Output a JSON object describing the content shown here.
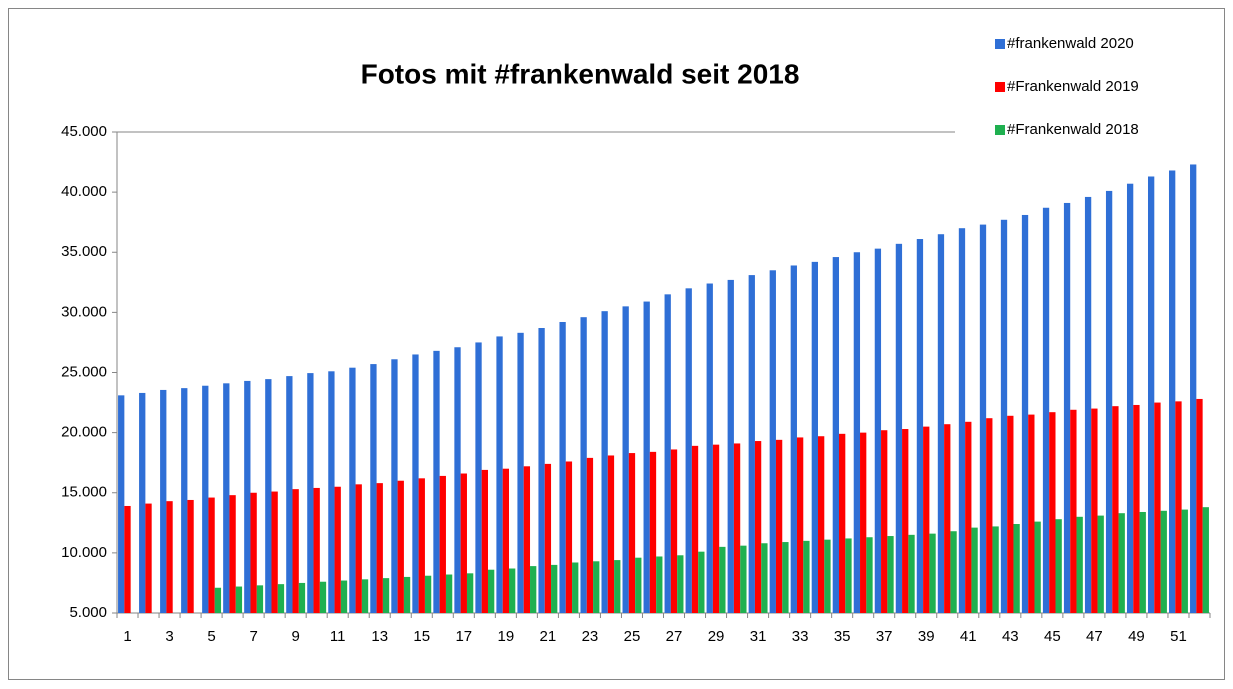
{
  "chart_data": {
    "type": "bar",
    "title": "Fotos mit #frankenwald seit 2018",
    "categories": [
      1,
      null,
      3,
      null,
      5,
      null,
      7,
      null,
      9,
      null,
      11,
      null,
      13,
      null,
      15,
      null,
      17,
      null,
      19,
      null,
      21,
      null,
      23,
      null,
      25,
      null,
      27,
      null,
      29,
      null,
      31,
      null,
      33,
      null,
      35,
      null,
      37,
      null,
      39,
      null,
      41,
      null,
      43,
      null,
      45,
      null,
      47,
      null,
      49,
      null,
      51,
      null
    ],
    "series": [
      {
        "name": "#frankenwald 2020",
        "color": "#2f6fd6",
        "values": [
          23100,
          23300,
          23550,
          23700,
          23900,
          24100,
          24300,
          24450,
          24700,
          24950,
          25100,
          25400,
          25700,
          26100,
          26500,
          26800,
          27100,
          27500,
          28000,
          28300,
          28700,
          29200,
          29600,
          30100,
          30500,
          30900,
          31500,
          32000,
          32400,
          32700,
          33100,
          33500,
          33900,
          34200,
          34600,
          35000,
          35300,
          35700,
          36100,
          36500,
          37000,
          37300,
          37700,
          38100,
          38700,
          39100,
          39600,
          40100,
          40700,
          41300,
          41800,
          42300
        ]
      },
      {
        "name": "#Frankenwald 2019",
        "color": "#ff0000",
        "values": [
          13900,
          14100,
          14300,
          14400,
          14600,
          14800,
          15000,
          15100,
          15300,
          15400,
          15500,
          15700,
          15800,
          16000,
          16200,
          16400,
          16600,
          16900,
          17000,
          17200,
          17400,
          17600,
          17900,
          18100,
          18300,
          18400,
          18600,
          18900,
          19000,
          19100,
          19300,
          19400,
          19600,
          19700,
          19900,
          20000,
          20200,
          20300,
          20500,
          20700,
          20900,
          21200,
          21400,
          21500,
          21700,
          21900,
          22000,
          22200,
          22300,
          22500,
          22600,
          22800
        ]
      },
      {
        "name": "#Frankenwald 2018",
        "color": "#1fb050",
        "values": [
          null,
          null,
          null,
          null,
          7100,
          7200,
          7300,
          7400,
          7500,
          7600,
          7700,
          7800,
          7900,
          8000,
          8100,
          8200,
          8300,
          8600,
          8700,
          8900,
          9000,
          9200,
          9300,
          9400,
          9600,
          9700,
          9800,
          10100,
          10500,
          10600,
          10800,
          10900,
          11000,
          11100,
          11200,
          11300,
          11400,
          11500,
          11600,
          11800,
          12100,
          12200,
          12400,
          12600,
          12800,
          13000,
          13100,
          13300,
          13400,
          13500,
          13600,
          13800
        ]
      }
    ],
    "ylim": [
      5000,
      45000
    ],
    "yticks": [
      {
        "value": 5000,
        "label": "5.000"
      },
      {
        "value": 10000,
        "label": "10.000"
      },
      {
        "value": 15000,
        "label": "15.000"
      },
      {
        "value": 20000,
        "label": "20.000"
      },
      {
        "value": 25000,
        "label": "25.000"
      },
      {
        "value": 30000,
        "label": "30.000"
      },
      {
        "value": 35000,
        "label": "35.000"
      },
      {
        "value": 40000,
        "label": "40.000"
      },
      {
        "value": 45000,
        "label": "45.000"
      }
    ],
    "grid": false,
    "legend": "top-right"
  }
}
